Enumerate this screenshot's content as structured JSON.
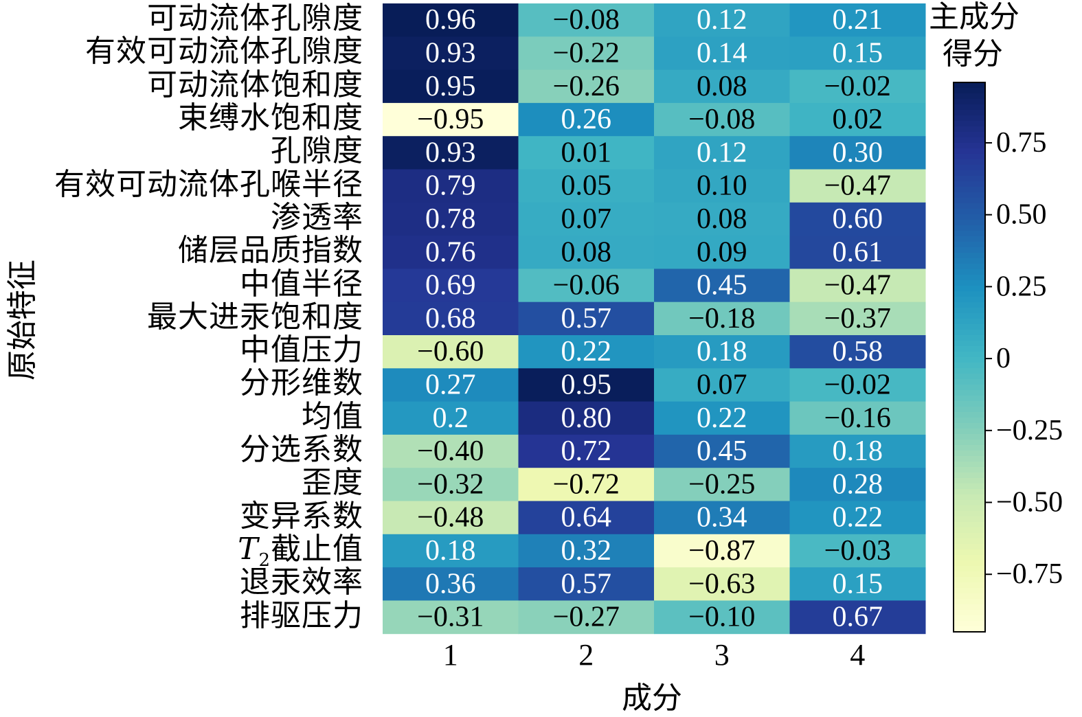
{
  "chart_data": {
    "type": "heatmap",
    "xlabel": "成分",
    "ylabel": "原始特征",
    "colorbar_label_lines": [
      "主成分",
      "得分"
    ],
    "colorbar_ticks": [
      "0.75",
      "0.50",
      "0.25",
      "0",
      "−0.25",
      "−0.50",
      "−0.75"
    ],
    "colorbar_tick_values": [
      0.75,
      0.5,
      0.25,
      0,
      -0.25,
      -0.5,
      -0.75
    ],
    "colorbar_range": [
      -0.95,
      0.96
    ],
    "colormap": "YlGnBu",
    "columns": [
      "1",
      "2",
      "3",
      "4"
    ],
    "rows": [
      {
        "label": "可动流体孔隙度",
        "values": [
          0.96,
          -0.08,
          0.12,
          0.21
        ],
        "text": [
          "0.96",
          "−0.08",
          "0.12",
          "0.21"
        ]
      },
      {
        "label": "有效可动流体孔隙度",
        "values": [
          0.93,
          -0.22,
          0.14,
          0.15
        ],
        "text": [
          "0.93",
          "−0.22",
          "0.14",
          "0.15"
        ]
      },
      {
        "label": "可动流体饱和度",
        "values": [
          0.95,
          -0.26,
          0.08,
          -0.02
        ],
        "text": [
          "0.95",
          "−0.26",
          "0.08",
          "−0.02"
        ]
      },
      {
        "label": "束缚水饱和度",
        "values": [
          -0.95,
          0.26,
          -0.08,
          0.02
        ],
        "text": [
          "−0.95",
          "0.26",
          "−0.08",
          "0.02"
        ]
      },
      {
        "label": "孔隙度",
        "values": [
          0.93,
          0.01,
          0.12,
          0.3
        ],
        "text": [
          "0.93",
          "0.01",
          "0.12",
          "0.30"
        ]
      },
      {
        "label": "有效可动流体孔喉半径",
        "values": [
          0.79,
          0.05,
          0.1,
          -0.47
        ],
        "text": [
          "0.79",
          "0.05",
          "0.10",
          "−0.47"
        ]
      },
      {
        "label": "渗透率",
        "values": [
          0.78,
          0.07,
          0.08,
          0.6
        ],
        "text": [
          "0.78",
          "0.07",
          "0.08",
          "0.60"
        ]
      },
      {
        "label": "储层品质指数",
        "values": [
          0.76,
          0.08,
          0.09,
          0.61
        ],
        "text": [
          "0.76",
          "0.08",
          "0.09",
          "0.61"
        ]
      },
      {
        "label": "中值半径",
        "values": [
          0.69,
          -0.06,
          0.45,
          -0.47
        ],
        "text": [
          "0.69",
          "−0.06",
          "0.45",
          "−0.47"
        ]
      },
      {
        "label": "最大进汞饱和度",
        "values": [
          0.68,
          0.57,
          -0.18,
          -0.37
        ],
        "text": [
          "0.68",
          "0.57",
          "−0.18",
          "−0.37"
        ]
      },
      {
        "label": "中值压力",
        "values": [
          -0.6,
          0.22,
          0.18,
          0.58
        ],
        "text": [
          "−0.60",
          "0.22",
          "0.18",
          "0.58"
        ]
      },
      {
        "label": "分形维数",
        "values": [
          0.27,
          0.95,
          0.07,
          -0.02
        ],
        "text": [
          "0.27",
          "0.95",
          "0.07",
          "−0.02"
        ]
      },
      {
        "label": "均值",
        "values": [
          0.2,
          0.8,
          0.22,
          -0.16
        ],
        "text": [
          "0.2",
          "0.80",
          "0.22",
          "−0.16"
        ]
      },
      {
        "label": "分选系数",
        "values": [
          -0.4,
          0.72,
          0.45,
          0.18
        ],
        "text": [
          "−0.40",
          "0.72",
          "0.45",
          "0.18"
        ]
      },
      {
        "label": "歪度",
        "values": [
          -0.32,
          -0.72,
          -0.25,
          0.28
        ],
        "text": [
          "−0.32",
          "−0.72",
          "−0.25",
          "0.28"
        ]
      },
      {
        "label": "变异系数",
        "values": [
          -0.48,
          0.64,
          0.34,
          0.22
        ],
        "text": [
          "−0.48",
          "0.64",
          "0.34",
          "0.22"
        ]
      },
      {
        "label": "截止值",
        "label_prefix_italic": "T",
        "label_prefix_sub": "2",
        "values": [
          0.18,
          0.32,
          -0.87,
          -0.03
        ],
        "text": [
          "0.18",
          "0.32",
          "−0.87",
          "−0.03"
        ]
      },
      {
        "label": "退汞效率",
        "values": [
          0.36,
          0.57,
          -0.63,
          0.15
        ],
        "text": [
          "0.36",
          "0.57",
          "−0.63",
          "0.15"
        ]
      },
      {
        "label": "排驱压力",
        "values": [
          -0.31,
          -0.27,
          -0.1,
          0.67
        ],
        "text": [
          "−0.31",
          "−0.27",
          "−0.10",
          "0.67"
        ]
      }
    ]
  }
}
